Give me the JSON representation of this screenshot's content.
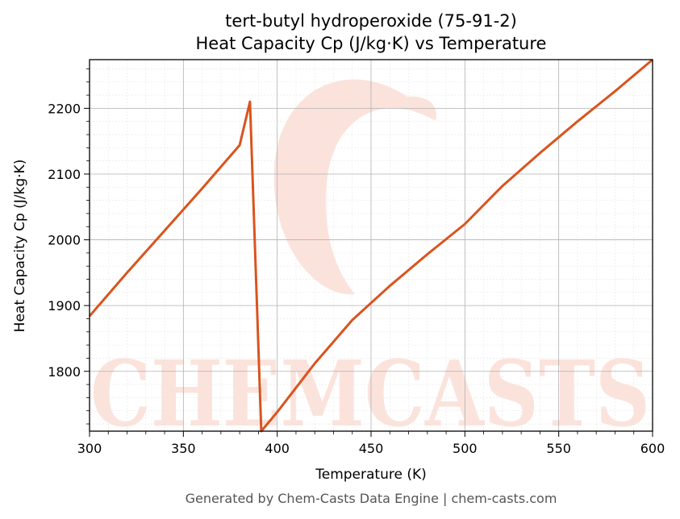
{
  "chart_data": {
    "type": "line",
    "title_line1": "tert-butyl hydroperoxide (75-91-2)",
    "title_line2": "Heat Capacity Cp (J/kg·K) vs Temperature",
    "xlabel": "Temperature (K)",
    "ylabel": "Heat Capacity Cp (J/kg·K)",
    "xlim": [
      300,
      600
    ],
    "ylim": [
      1709,
      2274
    ],
    "xticks": [
      300,
      350,
      400,
      450,
      500,
      550,
      600
    ],
    "yticks": [
      1800,
      1900,
      2000,
      2100,
      2200
    ],
    "grid": true,
    "series": [
      {
        "color": "#d9541e",
        "x": [
          300,
          320,
          340,
          360,
          380,
          385.5,
          391.5,
          400,
          420,
          440,
          460,
          480,
          500,
          520,
          540,
          560,
          580,
          600
        ],
        "y": [
          1884,
          1950,
          2014,
          2078,
          2144,
          2210,
          1709,
          1738,
          1812,
          1878,
          1930,
          1978,
          2024,
          2082,
          2132,
          2180,
          2226,
          2274
        ]
      }
    ]
  },
  "watermark": {
    "text": "CHEMCASTS",
    "color": "#fbe3dc"
  },
  "footer": "Generated by Chem-Casts Data Engine | chem-casts.com"
}
